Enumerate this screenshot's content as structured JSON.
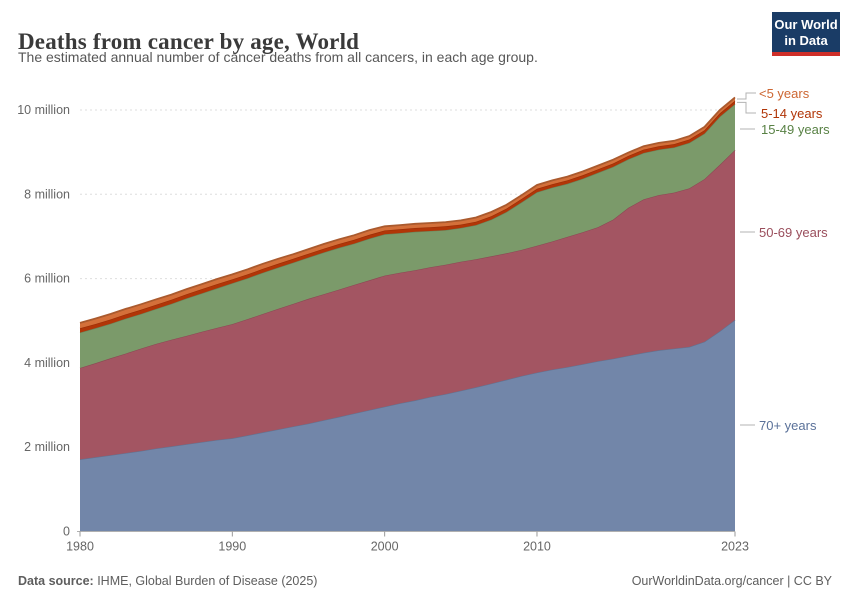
{
  "header": {
    "title": "Deaths from cancer by age, World",
    "subtitle": "The estimated annual number of cancer deaths from all cancers, in each age group."
  },
  "logo": {
    "line1": "Our World",
    "line2": "in Data",
    "bg_color": "#1a3c66",
    "bar_color": "#cf2f29"
  },
  "chart_data": {
    "type": "area",
    "stacked": true,
    "title": "Deaths from cancer by age, World",
    "subtitle": "The estimated annual number of cancer deaths from all cancers, in each age group.",
    "unit": "million deaths",
    "grid": true,
    "legend_position": "right",
    "xlabel": "",
    "ylabel": "",
    "ylim": [
      0,
      10.45
    ],
    "x": [
      1980,
      1981,
      1982,
      1983,
      1984,
      1985,
      1986,
      1987,
      1988,
      1989,
      1990,
      1991,
      1992,
      1993,
      1994,
      1995,
      1996,
      1997,
      1998,
      1999,
      2000,
      2001,
      2002,
      2003,
      2004,
      2005,
      2006,
      2007,
      2008,
      2009,
      2010,
      2011,
      2012,
      2013,
      2014,
      2015,
      2016,
      2017,
      2018,
      2019,
      2020,
      2021,
      2022,
      2023
    ],
    "series": [
      {
        "id": "over70",
        "name": "70+ years",
        "color": "#7286a9",
        "label_color": "#5a7199",
        "values": [
          1.71,
          1.76,
          1.81,
          1.86,
          1.91,
          1.97,
          2.02,
          2.07,
          2.12,
          2.17,
          2.21,
          2.28,
          2.35,
          2.42,
          2.49,
          2.56,
          2.64,
          2.72,
          2.8,
          2.88,
          2.96,
          3.04,
          3.11,
          3.19,
          3.26,
          3.34,
          3.42,
          3.51,
          3.6,
          3.69,
          3.77,
          3.84,
          3.9,
          3.97,
          4.04,
          4.1,
          4.17,
          4.24,
          4.3,
          4.34,
          4.38,
          4.5,
          4.75,
          5.02
        ]
      },
      {
        "id": "y5069",
        "name": "50-69 years",
        "color": "#a35562",
        "label_color": "#9a4e5c",
        "values": [
          2.17,
          2.23,
          2.3,
          2.36,
          2.43,
          2.48,
          2.53,
          2.57,
          2.62,
          2.66,
          2.71,
          2.76,
          2.81,
          2.86,
          2.91,
          2.96,
          2.99,
          3.02,
          3.05,
          3.08,
          3.11,
          3.1,
          3.09,
          3.08,
          3.07,
          3.06,
          3.04,
          3.02,
          3.0,
          2.99,
          3.01,
          3.04,
          3.09,
          3.13,
          3.18,
          3.3,
          3.51,
          3.64,
          3.68,
          3.7,
          3.76,
          3.86,
          3.95,
          4.03
        ]
      },
      {
        "id": "y1549",
        "name": "15-49 years",
        "color": "#7b9a6a",
        "label_color": "#588144",
        "values": [
          0.84,
          0.83,
          0.82,
          0.83,
          0.82,
          0.83,
          0.85,
          0.89,
          0.91,
          0.94,
          0.97,
          0.97,
          0.98,
          0.98,
          0.98,
          0.98,
          0.99,
          0.99,
          0.98,
          0.99,
          0.98,
          0.94,
          0.91,
          0.86,
          0.82,
          0.8,
          0.81,
          0.87,
          0.98,
          1.13,
          1.27,
          1.28,
          1.26,
          1.27,
          1.29,
          1.25,
          1.15,
          1.1,
          1.08,
          1.07,
          1.08,
          1.08,
          1.14,
          1.09
        ]
      },
      {
        "id": "y514",
        "name": "5-14 years",
        "color": "#b13507",
        "label_color": "#b13507",
        "values": [
          0.1,
          0.1,
          0.1,
          0.1,
          0.1,
          0.1,
          0.1,
          0.1,
          0.1,
          0.1,
          0.09,
          0.09,
          0.09,
          0.09,
          0.09,
          0.09,
          0.09,
          0.09,
          0.09,
          0.09,
          0.09,
          0.09,
          0.09,
          0.09,
          0.09,
          0.08,
          0.08,
          0.08,
          0.08,
          0.08,
          0.08,
          0.08,
          0.08,
          0.08,
          0.08,
          0.08,
          0.08,
          0.08,
          0.08,
          0.08,
          0.08,
          0.08,
          0.08,
          0.08
        ]
      },
      {
        "id": "under5",
        "name": "<5 years",
        "color": "#d4703a",
        "label_color": "#cd6733",
        "values": [
          0.13,
          0.13,
          0.13,
          0.13,
          0.13,
          0.13,
          0.12,
          0.12,
          0.12,
          0.12,
          0.12,
          0.12,
          0.12,
          0.12,
          0.11,
          0.11,
          0.11,
          0.11,
          0.11,
          0.11,
          0.1,
          0.1,
          0.1,
          0.1,
          0.1,
          0.1,
          0.1,
          0.1,
          0.09,
          0.09,
          0.09,
          0.09,
          0.09,
          0.09,
          0.09,
          0.09,
          0.08,
          0.08,
          0.08,
          0.08,
          0.08,
          0.08,
          0.08,
          0.08
        ]
      }
    ],
    "yticks": [
      {
        "value": 0,
        "label": "0"
      },
      {
        "value": 2,
        "label": "2 million"
      },
      {
        "value": 4,
        "label": "4 million"
      },
      {
        "value": 6,
        "label": "6 million"
      },
      {
        "value": 8,
        "label": "8 million"
      },
      {
        "value": 10,
        "label": "10 million"
      }
    ],
    "xticks": [
      {
        "value": 1980,
        "label": "1980"
      },
      {
        "value": 1990,
        "label": "1990"
      },
      {
        "value": 2000,
        "label": "2000"
      },
      {
        "value": 2010,
        "label": "2010"
      },
      {
        "value": 2023,
        "label": "2023"
      }
    ]
  },
  "legend": {
    "items": [
      {
        "label": "<5 years",
        "series": "under5",
        "color": "#cd6733"
      },
      {
        "label": "5-14 years",
        "series": "y514",
        "color": "#b13507"
      },
      {
        "label": "15-49 years",
        "series": "y1549",
        "color": "#588144"
      },
      {
        "label": "50-69 years",
        "series": "y5069",
        "color": "#9a4e5c"
      },
      {
        "label": "70+ years",
        "series": "over70",
        "color": "#5a7199"
      }
    ]
  },
  "footer": {
    "source_label": "Data source:",
    "source_value": " IHME, Global Burden of Disease (2025)",
    "credit": "OurWorldinData.org/cancer | CC BY"
  }
}
